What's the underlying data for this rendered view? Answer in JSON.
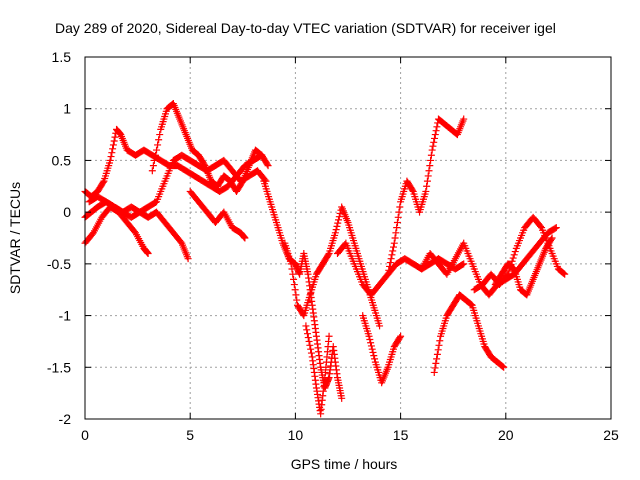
{
  "chart_data": {
    "type": "scatter",
    "title": "Day 289 of 2020, Sidereal Day-to-day VTEC variation (SDTVAR) for receiver igel",
    "xlabel": "GPS time / hours",
    "ylabel": "SDTVAR / TECUs",
    "xlim": [
      0,
      25
    ],
    "ylim": [
      -2,
      1.5
    ],
    "xticks": [
      0,
      5,
      10,
      15,
      20,
      25
    ],
    "xtick_labels": [
      "0",
      "5",
      "10",
      "15",
      "20",
      "25"
    ],
    "yticks": [
      1.5,
      1,
      0.5,
      0,
      -0.5,
      -1,
      -1.5,
      -2
    ],
    "ytick_labels": [
      "1.5",
      "1",
      "0.5",
      "0",
      "-0.5",
      "-1",
      "-1.5",
      "-2"
    ],
    "grid": true,
    "marker": "+",
    "color": "#ff0000",
    "series": [
      {
        "x": [
          0,
          0.3,
          0.6,
          0.9,
          1.2,
          1.5,
          1.7,
          2.0,
          2.4,
          2.8,
          3.2,
          3.6,
          4.0,
          4.4,
          4.8,
          5.2,
          5.6,
          6.0,
          6.4,
          6.8,
          7.2,
          7.6,
          8.0,
          8.4,
          8.7
        ],
        "y": [
          0.2,
          0.15,
          0.2,
          0.3,
          0.5,
          0.8,
          0.75,
          0.6,
          0.55,
          0.6,
          0.55,
          0.5,
          0.45,
          0.45,
          0.4,
          0.35,
          0.3,
          0.25,
          0.2,
          0.25,
          0.35,
          0.45,
          0.5,
          0.55,
          0.45
        ]
      },
      {
        "x": [
          0,
          0.3,
          0.6,
          1.0,
          1.4,
          1.8,
          2.2,
          2.6,
          3.0,
          3.4,
          3.8,
          4.2,
          4.6,
          5.0,
          5.4,
          5.8,
          6.2,
          6.6,
          7.0,
          7.4,
          7.8,
          8.2,
          8.6
        ],
        "y": [
          -0.05,
          0,
          0.05,
          0.1,
          0.05,
          0,
          -0.05,
          0,
          0.05,
          0.1,
          0.3,
          0.5,
          0.55,
          0.5,
          0.45,
          0.4,
          0.45,
          0.5,
          0.4,
          0.3,
          0.35,
          0.4,
          0.3
        ]
      },
      {
        "x": [
          0,
          0.4,
          0.8,
          1.2,
          1.6,
          2.0,
          2.4,
          2.8,
          3.0
        ],
        "y": [
          -0.3,
          -0.2,
          -0.05,
          0.05,
          0.0,
          -0.1,
          -0.2,
          -0.35,
          -0.4
        ]
      },
      {
        "x": [
          3.2,
          3.6,
          3.9,
          4.2,
          4.5,
          4.8,
          5.1,
          5.4,
          5.7,
          6.0,
          6.3,
          6.6,
          6.9,
          7.2,
          7.5,
          7.8,
          8.1,
          8.4
        ],
        "y": [
          0.4,
          0.8,
          1.0,
          1.05,
          0.9,
          0.75,
          0.6,
          0.55,
          0.45,
          0.3,
          0.25,
          0.35,
          0.3,
          0.2,
          0.3,
          0.45,
          0.6,
          0.55
        ]
      },
      {
        "x": [
          0.2,
          0.6,
          1.0,
          1.4,
          1.8,
          2.2,
          2.6,
          3.0,
          3.4,
          3.8,
          4.2,
          4.6,
          4.9
        ],
        "y": [
          0.1,
          0.15,
          0.1,
          0.05,
          0.0,
          0.05,
          0.0,
          -0.05,
          0.0,
          -0.1,
          -0.2,
          -0.3,
          -0.45
        ]
      },
      {
        "x": [
          5.0,
          5.4,
          5.8,
          6.2,
          6.6,
          7.0,
          7.4,
          7.6
        ],
        "y": [
          0.2,
          0.1,
          0.0,
          -0.1,
          0.0,
          -0.15,
          -0.2,
          -0.25
        ]
      },
      {
        "x": [
          8.5,
          8.8,
          9.1,
          9.4,
          9.7,
          10.0,
          10.2,
          10.4,
          10.6,
          10.8,
          11.0,
          11.2,
          11.4,
          11.6,
          11.8,
          12.0,
          12.2
        ],
        "y": [
          0.3,
          0.1,
          -0.1,
          -0.3,
          -0.45,
          -0.5,
          -0.6,
          -0.4,
          -0.6,
          -0.9,
          -1.2,
          -1.5,
          -1.7,
          -1.6,
          -1.3,
          -1.6,
          -1.8
        ]
      },
      {
        "x": [
          9.5,
          9.8,
          10.1,
          10.4,
          10.7,
          11.0,
          11.3,
          11.6,
          11.9,
          12.2,
          12.5,
          12.8,
          13.1,
          13.4,
          13.7,
          14.0
        ],
        "y": [
          -0.3,
          -0.5,
          -0.9,
          -1.0,
          -0.8,
          -0.6,
          -0.5,
          -0.4,
          -0.2,
          0.05,
          -0.1,
          -0.3,
          -0.5,
          -0.7,
          -0.9,
          -1.1
        ]
      },
      {
        "x": [
          10.5,
          10.8,
          11.0,
          11.2,
          11.4,
          11.6
        ],
        "y": [
          -1.1,
          -1.4,
          -1.7,
          -1.95,
          -1.6,
          -1.2
        ]
      },
      {
        "x": [
          12.0,
          12.4,
          12.8,
          13.2,
          13.6,
          14.0,
          14.4,
          14.8,
          15.2,
          15.6,
          16.0,
          16.4,
          16.8,
          17.2,
          17.6,
          18.0
        ],
        "y": [
          -0.4,
          -0.3,
          -0.5,
          -0.7,
          -0.8,
          -0.7,
          -0.6,
          -0.5,
          -0.45,
          -0.5,
          -0.55,
          -0.5,
          -0.45,
          -0.5,
          -0.55,
          -0.5
        ]
      },
      {
        "x": [
          13.2,
          13.5,
          13.8,
          14.1,
          14.4,
          14.7,
          15.0
        ],
        "y": [
          -1.0,
          -1.2,
          -1.45,
          -1.65,
          -1.5,
          -1.3,
          -1.2
        ]
      },
      {
        "x": [
          14.4,
          14.7,
          15.0,
          15.3,
          15.6,
          15.9,
          16.2,
          16.5,
          16.8,
          17.1,
          17.4,
          17.7,
          18.0
        ],
        "y": [
          -0.6,
          -0.3,
          0.1,
          0.3,
          0.2,
          0.0,
          0.2,
          0.6,
          0.9,
          0.85,
          0.8,
          0.75,
          0.9
        ]
      },
      {
        "x": [
          16.6,
          16.9,
          17.2,
          17.5,
          17.8,
          18.1,
          18.4,
          18.7,
          19.0,
          19.3,
          19.6,
          19.9
        ],
        "y": [
          -1.55,
          -1.2,
          -1.0,
          -0.9,
          -0.8,
          -0.85,
          -0.9,
          -1.1,
          -1.3,
          -1.4,
          -1.45,
          -1.5
        ]
      },
      {
        "x": [
          16.0,
          16.4,
          16.8,
          17.2,
          17.6,
          18.0,
          18.4,
          18.8,
          19.2,
          19.6,
          20.0,
          20.4,
          20.8,
          21.2,
          21.6,
          22.0,
          22.4
        ],
        "y": [
          -0.55,
          -0.4,
          -0.5,
          -0.6,
          -0.45,
          -0.3,
          -0.5,
          -0.7,
          -0.8,
          -0.7,
          -0.65,
          -0.6,
          -0.5,
          -0.4,
          -0.3,
          -0.2,
          -0.15
        ]
      },
      {
        "x": [
          18.5,
          18.9,
          19.3,
          19.7,
          20.1,
          20.5,
          20.9,
          21.3,
          21.7,
          22.1,
          22.5,
          22.8
        ],
        "y": [
          -0.75,
          -0.7,
          -0.6,
          -0.7,
          -0.6,
          -0.35,
          -0.15,
          -0.05,
          -0.15,
          -0.35,
          -0.55,
          -0.6
        ]
      },
      {
        "x": [
          19.5,
          19.8,
          20.1,
          20.4,
          20.7,
          21.0,
          21.3,
          21.6,
          21.9,
          22.2
        ],
        "y": [
          -0.7,
          -0.6,
          -0.5,
          -0.55,
          -0.75,
          -0.8,
          -0.65,
          -0.5,
          -0.35,
          -0.25
        ]
      }
    ]
  }
}
